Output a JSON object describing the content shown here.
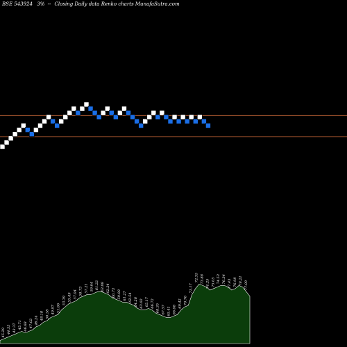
{
  "header": {
    "symbol": "BSE 543924",
    "box_size": "3%",
    "description": "Closing Daily data  Renko  charts MunafaSutra.com"
  },
  "colors": {
    "background": "#000000",
    "up_brick": "#ffffff",
    "down_brick": "#1a6ee6",
    "resistance_line": "#a0522d",
    "volume_fill": "#0b3d0b",
    "volume_stroke": "#ffffff"
  },
  "chart_data": {
    "type": "renko",
    "bricks": [
      {
        "level": 0,
        "dir": "up"
      },
      {
        "level": 1,
        "dir": "up"
      },
      {
        "level": 2,
        "dir": "up"
      },
      {
        "level": 3,
        "dir": "up"
      },
      {
        "level": 4,
        "dir": "up"
      },
      {
        "level": 5,
        "dir": "up"
      },
      {
        "level": 4,
        "dir": "down"
      },
      {
        "level": 3,
        "dir": "down"
      },
      {
        "level": 4,
        "dir": "up"
      },
      {
        "level": 5,
        "dir": "up"
      },
      {
        "level": 6,
        "dir": "up"
      },
      {
        "level": 7,
        "dir": "up"
      },
      {
        "level": 6,
        "dir": "down"
      },
      {
        "level": 5,
        "dir": "down"
      },
      {
        "level": 6,
        "dir": "up"
      },
      {
        "level": 7,
        "dir": "up"
      },
      {
        "level": 8,
        "dir": "up"
      },
      {
        "level": 9,
        "dir": "up"
      },
      {
        "level": 8,
        "dir": "down"
      },
      {
        "level": 9,
        "dir": "up"
      },
      {
        "level": 10,
        "dir": "up"
      },
      {
        "level": 9,
        "dir": "down"
      },
      {
        "level": 8,
        "dir": "down"
      },
      {
        "level": 7,
        "dir": "down"
      },
      {
        "level": 8,
        "dir": "up"
      },
      {
        "level": 9,
        "dir": "up"
      },
      {
        "level": 8,
        "dir": "down"
      },
      {
        "level": 7,
        "dir": "down"
      },
      {
        "level": 8,
        "dir": "up"
      },
      {
        "level": 9,
        "dir": "up"
      },
      {
        "level": 8,
        "dir": "down"
      },
      {
        "level": 7,
        "dir": "down"
      },
      {
        "level": 6,
        "dir": "down"
      },
      {
        "level": 5,
        "dir": "down"
      },
      {
        "level": 6,
        "dir": "up"
      },
      {
        "level": 7,
        "dir": "up"
      },
      {
        "level": 8,
        "dir": "up"
      },
      {
        "level": 7,
        "dir": "down"
      },
      {
        "level": 8,
        "dir": "up"
      },
      {
        "level": 7,
        "dir": "down"
      },
      {
        "level": 6,
        "dir": "down"
      },
      {
        "level": 7,
        "dir": "up"
      },
      {
        "level": 6,
        "dir": "down"
      },
      {
        "level": 7,
        "dir": "up"
      },
      {
        "level": 6,
        "dir": "down"
      },
      {
        "level": 7,
        "dir": "up"
      },
      {
        "level": 6,
        "dir": "down"
      },
      {
        "level": 7,
        "dir": "up"
      },
      {
        "level": 6,
        "dir": "down"
      },
      {
        "level": 5,
        "dir": "down"
      }
    ],
    "reference_lines": [
      {
        "level": 7.4
      },
      {
        "level": 2.4
      }
    ],
    "volume_profile": [
      2,
      3,
      4,
      5,
      6,
      7,
      8,
      7,
      8,
      9,
      11,
      12,
      14,
      15,
      17,
      18,
      19,
      22,
      24,
      26,
      27,
      28,
      30,
      31,
      32,
      32,
      33,
      34,
      34,
      33,
      32,
      30,
      29,
      28,
      27,
      27,
      26,
      25,
      23,
      22,
      22,
      23,
      22,
      20,
      19,
      18,
      17,
      17,
      18,
      19,
      22,
      24,
      25,
      32,
      36,
      39,
      38,
      37,
      35,
      36,
      37,
      38,
      38,
      37,
      35,
      36,
      38,
      37,
      34,
      31
    ],
    "volume_labels": [
      "45.29",
      "44.55",
      "43.37",
      "45.71",
      "46.68",
      "47.02",
      "46.24",
      "48.18",
      "50.58",
      "49.97",
      "51.66",
      "53.39",
      "55.49",
      "57.04",
      "58.73",
      "57.21",
      "59.64",
      "61.22",
      "63.88",
      "62.24",
      "60.73",
      "59.08",
      "61.27",
      "62.54",
      "64.28",
      "63.02",
      "65.17",
      "66.72",
      "68.35",
      "67.57",
      "65.41",
      "66.08",
      "69.42",
      "70.76",
      "71.17",
      "72.35",
      "73.88",
      "74.25",
      "75.05",
      "74.53",
      "76.34",
      "77.43",
      "76.98",
      "78.21",
      "77.09"
    ]
  }
}
